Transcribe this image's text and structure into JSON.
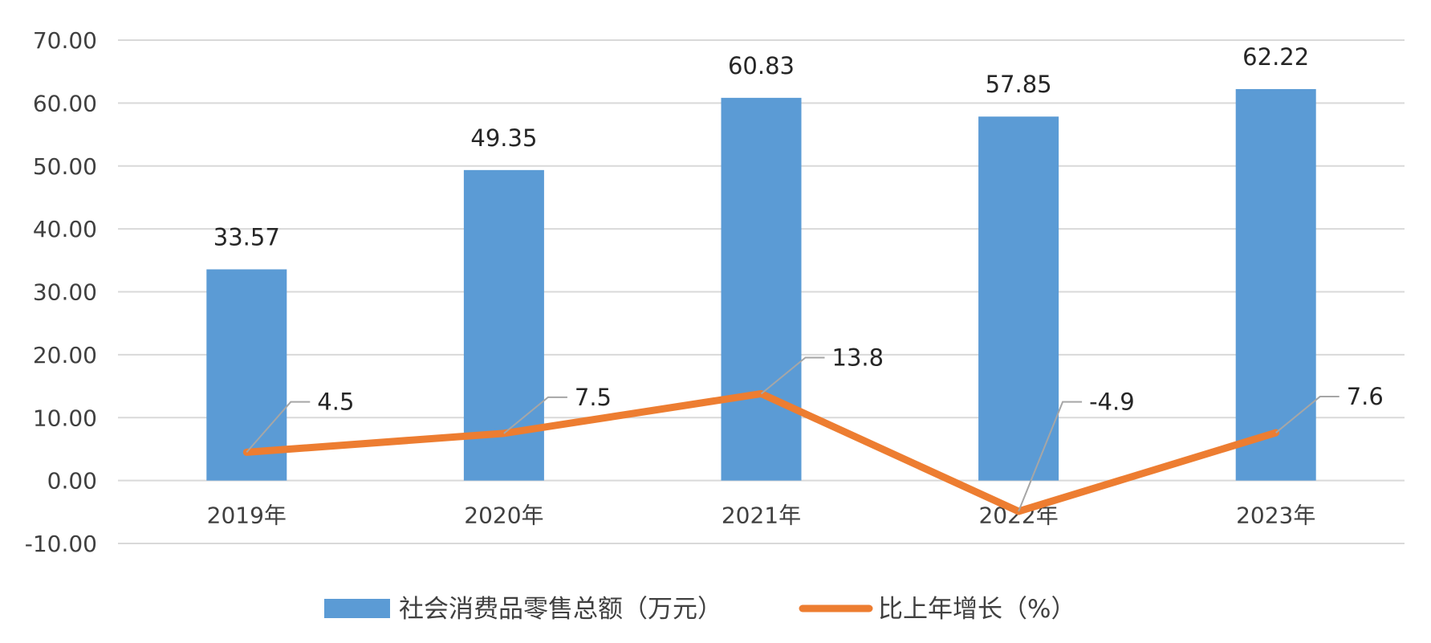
{
  "chart_data": {
    "type": "bar",
    "categories": [
      "2019年",
      "2020年",
      "2021年",
      "2022年",
      "2023年"
    ],
    "series": [
      {
        "name": "社会消费品零售总额（万元）",
        "type": "bar",
        "color": "#5B9BD5",
        "values": [
          33.57,
          49.35,
          60.83,
          57.85,
          62.22
        ],
        "labels": [
          "33.57",
          "49.35",
          "60.83",
          "57.85",
          "62.22"
        ]
      },
      {
        "name": "比上年增长（%）",
        "type": "line",
        "color": "#ED7D31",
        "values": [
          4.5,
          7.5,
          13.8,
          -4.9,
          7.6
        ],
        "labels": [
          "4.5",
          "7.5",
          "13.8",
          "-4.9",
          "7.6"
        ]
      }
    ],
    "ylim": [
      -10,
      70
    ],
    "yticks": [
      "-10.00",
      "0.00",
      "10.00",
      "20.00",
      "30.00",
      "40.00",
      "50.00",
      "60.00",
      "70.00"
    ],
    "grid": true,
    "legend_position": "bottom",
    "grid_color": "#D9D9D9",
    "leader_color": "#A6A6A6"
  }
}
